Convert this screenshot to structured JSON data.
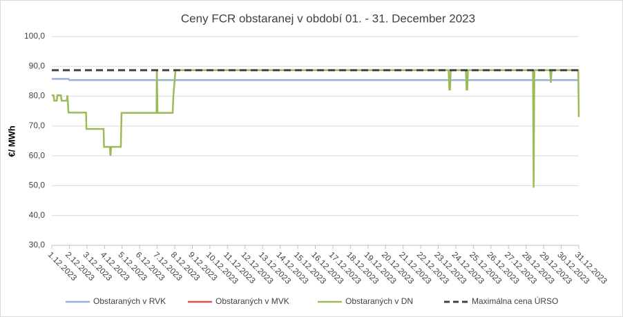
{
  "chart_data": {
    "type": "line",
    "title": "Ceny FCR obstaranej v období 01. - 31. December 2023",
    "y_label": "€/ MWh",
    "xlim": [
      1,
      31
    ],
    "xticks": [
      {
        "value": 1,
        "label": "1.12.2023"
      },
      {
        "value": 2,
        "label": "2.12.2023"
      },
      {
        "value": 3,
        "label": "3.12.2023"
      },
      {
        "value": 4,
        "label": "4.12.2023"
      },
      {
        "value": 5,
        "label": "5.12.2023"
      },
      {
        "value": 6,
        "label": "6.12.2023"
      },
      {
        "value": 7,
        "label": "7.12.2023"
      },
      {
        "value": 8,
        "label": "8.12.2023"
      },
      {
        "value": 9,
        "label": "9.12.2023"
      },
      {
        "value": 10,
        "label": "10.12.2023"
      },
      {
        "value": 11,
        "label": "11.12.2023"
      },
      {
        "value": 12,
        "label": "12.12.2023"
      },
      {
        "value": 13,
        "label": "13.12.2023"
      },
      {
        "value": 14,
        "label": "14.12.2023"
      },
      {
        "value": 15,
        "label": "15.12.2023"
      },
      {
        "value": 16,
        "label": "16.12.2023"
      },
      {
        "value": 17,
        "label": "17.12.2023"
      },
      {
        "value": 18,
        "label": "18.12.2023"
      },
      {
        "value": 19,
        "label": "19.12.2023"
      },
      {
        "value": 20,
        "label": "20.12.2023"
      },
      {
        "value": 21,
        "label": "21.12.2023"
      },
      {
        "value": 22,
        "label": "22.12.2023"
      },
      {
        "value": 23,
        "label": "23.12.2023"
      },
      {
        "value": 24,
        "label": "24.12.2023"
      },
      {
        "value": 25,
        "label": "25.12.2023"
      },
      {
        "value": 26,
        "label": "26.12.2023"
      },
      {
        "value": 27,
        "label": "27.12.2023"
      },
      {
        "value": 28,
        "label": "28.12.2023"
      },
      {
        "value": 29,
        "label": "29.12.2023"
      },
      {
        "value": 30,
        "label": "30.12.2023"
      },
      {
        "value": 31,
        "label": "31.12.2023"
      }
    ],
    "ylim": [
      30,
      100
    ],
    "yticks": [
      {
        "value": 30,
        "label": "30,0"
      },
      {
        "value": 40,
        "label": "40,0"
      },
      {
        "value": 50,
        "label": "50,0"
      },
      {
        "value": 60,
        "label": "60,0"
      },
      {
        "value": 70,
        "label": "70,0"
      },
      {
        "value": 80,
        "label": "80,0"
      },
      {
        "value": 90,
        "label": "90,0"
      },
      {
        "value": 100,
        "label": "100,0"
      }
    ],
    "grid": true,
    "legend": "bottom",
    "series": [
      {
        "name": "Obstaraných v RVK",
        "color": "#95b3d7",
        "x": [
          1,
          1.97,
          2,
          31
        ],
        "values": [
          85.8,
          85.8,
          85.4,
          85.4
        ]
      },
      {
        "name": "Obstaraných v MVK",
        "color": "#e05050",
        "x": [
          1,
          31
        ],
        "values": [
          null,
          null
        ]
      },
      {
        "name": "Obstaraných v DN",
        "color": "#9bbb59",
        "x": [
          1,
          1.1,
          1.14,
          1.28,
          1.32,
          1.52,
          1.56,
          1.85,
          1.89,
          1.95,
          2.95,
          2.97,
          3.95,
          3.97,
          4.3,
          4.34,
          4.38,
          4.93,
          4.97,
          6.96,
          6.98,
          7.02,
          7.88,
          7.92,
          8.04,
          23.59,
          23.63,
          23.67,
          23.71,
          24.57,
          24.61,
          24.65,
          24.69,
          28.39,
          28.43,
          28.47,
          29.37,
          29.41,
          29.45,
          30.97,
          31
        ],
        "values": [
          80.3,
          80.3,
          78.5,
          78.5,
          80.3,
          80.3,
          78.5,
          78.5,
          80.3,
          74.5,
          74.5,
          69,
          69,
          63,
          63,
          60,
          63,
          63,
          74.4,
          74.4,
          88.7,
          74.4,
          74.4,
          80,
          88.7,
          88.7,
          82.2,
          82.2,
          88.7,
          88.7,
          82.2,
          82.2,
          88.7,
          88.7,
          49.3,
          88.7,
          88.7,
          84.5,
          88.7,
          88.7,
          73
        ]
      },
      {
        "name": "Maximálna cena ÚRSO",
        "color": "#404040",
        "dashed": true,
        "x": [
          1,
          31
        ],
        "values": [
          88.7,
          88.7
        ]
      }
    ]
  }
}
